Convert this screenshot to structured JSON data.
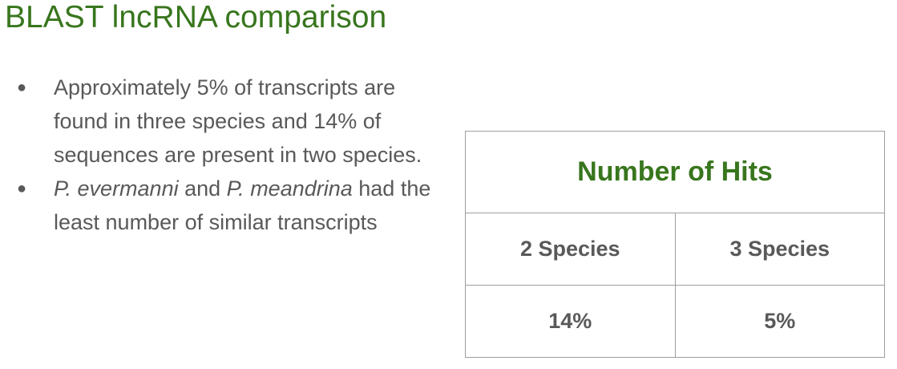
{
  "title": "BLAST lncRNA comparison",
  "bullets": [
    {
      "text": "Approximately 5% of transcripts are found in three species and 14% of sequences are present in two species."
    },
    {
      "species_1": "P. evermanni",
      "connector": " and ",
      "species_2": "P. meandrina",
      "rest": " had the least number of similar transcripts"
    }
  ],
  "bullet_glyph": "●",
  "table": {
    "header": "Number of Hits",
    "columns": [
      "2 Species",
      "3 Species"
    ],
    "values": [
      "14%",
      "5%"
    ]
  },
  "colors": {
    "title": "#38761d",
    "body_text": "#595959",
    "table_border": "#9e9e9e"
  }
}
